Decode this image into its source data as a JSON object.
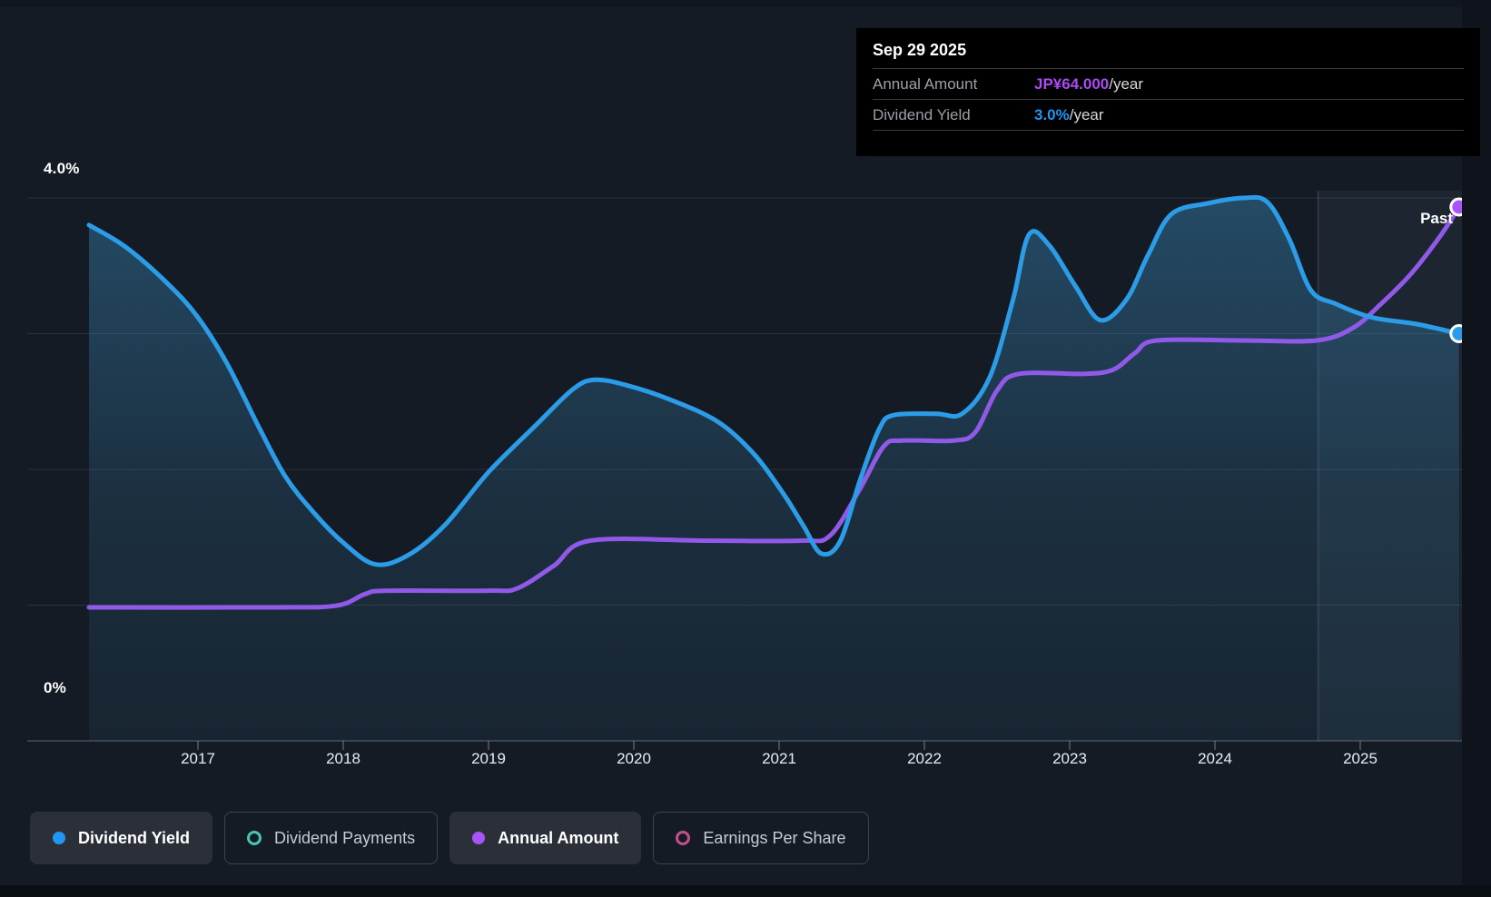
{
  "tooltip": {
    "date": "Sep 29 2025",
    "rows": [
      {
        "label": "Annual Amount",
        "value": "JP¥64.000",
        "suffix": "/year",
        "value_color": "#aa4cf2"
      },
      {
        "label": "Dividend Yield",
        "value": "3.0%",
        "suffix": "/year",
        "value_color": "#2196f3"
      }
    ]
  },
  "y_axis": {
    "top_label": "4.0%",
    "bottom_label": "0%"
  },
  "x_axis": {
    "years": [
      "2017",
      "2018",
      "2019",
      "2020",
      "2021",
      "2022",
      "2023",
      "2024",
      "2025"
    ]
  },
  "past_label": "Past",
  "legend": [
    {
      "label": "Dividend Yield",
      "color": "#2196f3",
      "style": "filled",
      "active": true
    },
    {
      "label": "Dividend Payments",
      "color": "#45c6b1",
      "style": "ring",
      "active": false
    },
    {
      "label": "Annual Amount",
      "color": "#a855f7",
      "style": "filled",
      "active": true
    },
    {
      "label": "Earnings Per Share",
      "color": "#c0508f",
      "style": "ring",
      "active": false
    }
  ],
  "chart_data": {
    "type": "line",
    "title": "Dividend history and forecast",
    "x_range": [
      2016.25,
      2025.72
    ],
    "ylim_percent": [
      0,
      4.0
    ],
    "y_gridlines_percent": [
      0,
      1,
      2,
      3,
      4
    ],
    "grid": "horizontal",
    "legend_position": "bottom",
    "past_divider_year": 2024.71,
    "hover_point": {
      "date": "Sep 29 2025",
      "annual_amount_jpy": 64.0,
      "dividend_yield_percent": 3.0
    },
    "series": [
      {
        "name": "Dividend Yield",
        "unit": "%",
        "color": "#2b9ce8",
        "area_fill": true,
        "points": [
          [
            2016.25,
            3.8
          ],
          [
            2016.5,
            3.64
          ],
          [
            2016.79,
            3.37
          ],
          [
            2017.0,
            3.12
          ],
          [
            2017.2,
            2.78
          ],
          [
            2017.42,
            2.31
          ],
          [
            2017.6,
            1.95
          ],
          [
            2017.79,
            1.69
          ],
          [
            2018.0,
            1.46
          ],
          [
            2018.22,
            1.3
          ],
          [
            2018.45,
            1.37
          ],
          [
            2018.7,
            1.59
          ],
          [
            2019.0,
            1.98
          ],
          [
            2019.33,
            2.33
          ],
          [
            2019.58,
            2.59
          ],
          [
            2019.73,
            2.66
          ],
          [
            2019.95,
            2.62
          ],
          [
            2020.26,
            2.51
          ],
          [
            2020.58,
            2.35
          ],
          [
            2020.83,
            2.11
          ],
          [
            2021.03,
            1.82
          ],
          [
            2021.17,
            1.58
          ],
          [
            2021.29,
            1.38
          ],
          [
            2021.42,
            1.47
          ],
          [
            2021.56,
            1.93
          ],
          [
            2021.69,
            2.3
          ],
          [
            2021.79,
            2.4
          ],
          [
            2022.08,
            2.41
          ],
          [
            2022.26,
            2.41
          ],
          [
            2022.45,
            2.68
          ],
          [
            2022.61,
            3.25
          ],
          [
            2022.72,
            3.73
          ],
          [
            2022.86,
            3.65
          ],
          [
            2023.04,
            3.35
          ],
          [
            2023.21,
            3.1
          ],
          [
            2023.39,
            3.25
          ],
          [
            2023.54,
            3.58
          ],
          [
            2023.7,
            3.88
          ],
          [
            2023.95,
            3.96
          ],
          [
            2024.2,
            4.0
          ],
          [
            2024.36,
            3.97
          ],
          [
            2024.51,
            3.7
          ],
          [
            2024.66,
            3.32
          ],
          [
            2024.83,
            3.22
          ],
          [
            2025.08,
            3.12
          ],
          [
            2025.39,
            3.07
          ],
          [
            2025.68,
            3.0
          ]
        ]
      },
      {
        "name": "Annual Amount",
        "unit": "JP¥/year",
        "color": "#9159e8",
        "area_fill": false,
        "points": [
          [
            2016.25,
            16
          ],
          [
            2017.5,
            16
          ],
          [
            2017.95,
            16.2
          ],
          [
            2018.15,
            17.6
          ],
          [
            2018.3,
            18
          ],
          [
            2019.0,
            18
          ],
          [
            2019.2,
            18.3
          ],
          [
            2019.45,
            21
          ],
          [
            2019.7,
            24
          ],
          [
            2020.5,
            24
          ],
          [
            2021.15,
            24
          ],
          [
            2021.35,
            24.6
          ],
          [
            2021.55,
            30
          ],
          [
            2021.72,
            35.3
          ],
          [
            2021.85,
            36
          ],
          [
            2022.2,
            36
          ],
          [
            2022.35,
            37
          ],
          [
            2022.5,
            42
          ],
          [
            2022.65,
            44
          ],
          [
            2023.1,
            44
          ],
          [
            2023.3,
            44.5
          ],
          [
            2023.45,
            46.5
          ],
          [
            2023.6,
            48
          ],
          [
            2024.2,
            48
          ],
          [
            2024.7,
            48
          ],
          [
            2024.95,
            49.5
          ],
          [
            2025.15,
            52.5
          ],
          [
            2025.35,
            56
          ],
          [
            2025.55,
            60.5
          ],
          [
            2025.68,
            64
          ]
        ]
      }
    ]
  }
}
